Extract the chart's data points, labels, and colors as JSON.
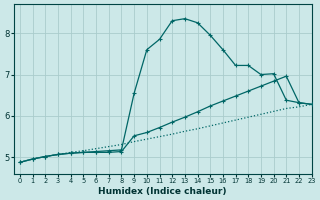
{
  "bg_color": "#cce8e8",
  "grid_color": "#b0d8d8",
  "line_color": "#006666",
  "xlabel": "Humidex (Indice chaleur)",
  "xlim": [
    -0.5,
    23
  ],
  "ylim": [
    4.6,
    8.7
  ],
  "xticks": [
    0,
    1,
    2,
    3,
    4,
    5,
    6,
    7,
    8,
    9,
    10,
    11,
    12,
    13,
    14,
    15,
    16,
    17,
    18,
    19,
    20,
    21,
    22,
    23
  ],
  "yticks": [
    5,
    6,
    7,
    8
  ],
  "line1_x": [
    0,
    1,
    2,
    3,
    4,
    5,
    6,
    7,
    8,
    9,
    10,
    11,
    12,
    13,
    14,
    15,
    16,
    17,
    18,
    19,
    20,
    21,
    22,
    23
  ],
  "line1_y": [
    4.88,
    4.96,
    5.02,
    5.07,
    5.12,
    5.16,
    5.21,
    5.26,
    5.31,
    5.38,
    5.44,
    5.5,
    5.56,
    5.63,
    5.69,
    5.76,
    5.83,
    5.9,
    5.97,
    6.04,
    6.11,
    6.18,
    6.22,
    6.28
  ],
  "line2_x": [
    0,
    1,
    2,
    3,
    4,
    5,
    6,
    7,
    8,
    9,
    10,
    11,
    12,
    13,
    14,
    15,
    16,
    17,
    18,
    19,
    20,
    21,
    22,
    23
  ],
  "line2_y": [
    4.88,
    4.96,
    5.02,
    5.07,
    5.1,
    5.12,
    5.12,
    5.12,
    5.14,
    5.52,
    5.6,
    5.72,
    5.85,
    5.97,
    6.1,
    6.24,
    6.36,
    6.48,
    6.6,
    6.72,
    6.84,
    6.96,
    6.32,
    6.28
  ],
  "line3_x": [
    0,
    1,
    2,
    3,
    4,
    5,
    6,
    7,
    8,
    9,
    10,
    11,
    12,
    13,
    14,
    15,
    16,
    17,
    18,
    19,
    20,
    21,
    22,
    23
  ],
  "line3_y": [
    4.88,
    4.96,
    5.02,
    5.07,
    5.1,
    5.12,
    5.14,
    5.16,
    5.18,
    6.55,
    7.6,
    7.85,
    8.3,
    8.35,
    8.25,
    7.95,
    7.6,
    7.22,
    7.22,
    7.0,
    7.02,
    6.38,
    6.32,
    6.28
  ]
}
